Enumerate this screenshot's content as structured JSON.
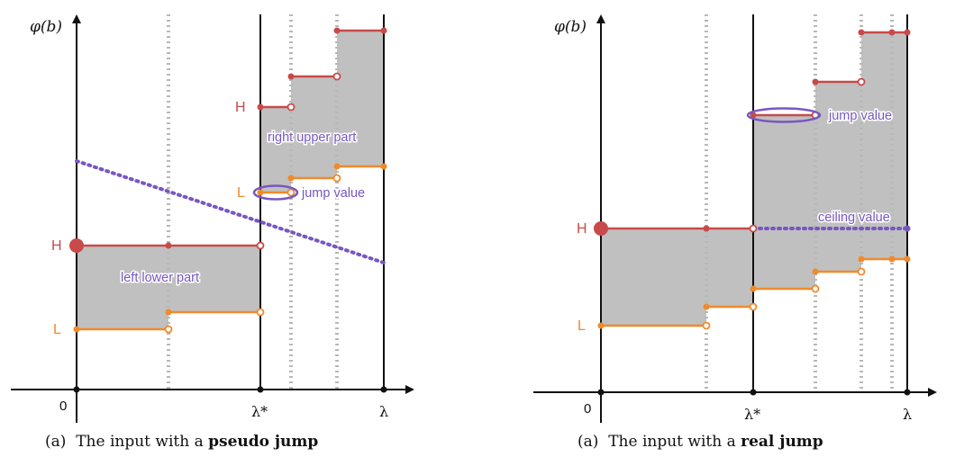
{
  "colors": {
    "high": "#c84a4a",
    "low": "#f08a2a",
    "purple": "#7757c0",
    "shade": "#c0c0c0",
    "dotted_grid": "#b8b8b8",
    "axis": "#111111"
  },
  "left": {
    "y_axis_label": "φ(b)",
    "zero_label": "0",
    "lambda_star_label": "λ*",
    "lambda_label": "λ",
    "h_label": "H",
    "l_label": "L",
    "left_lower_part_label": "left lower part",
    "right_upper_part_label": "right upper part",
    "jump_value_label": "jump value",
    "caption_prefix": "(a)  The input with a ",
    "caption_bold": "pseudo jump"
  },
  "right": {
    "y_axis_label": "φ(b)",
    "zero_label": "0",
    "lambda_star_label": "λ*",
    "lambda_label": "λ",
    "h_label": "H",
    "l_label": "L",
    "jump_value_label": "jump value",
    "ceiling_value_label": "ceiling value",
    "caption_prefix": "(a)  The input with a ",
    "caption_bold": "real jump"
  }
}
